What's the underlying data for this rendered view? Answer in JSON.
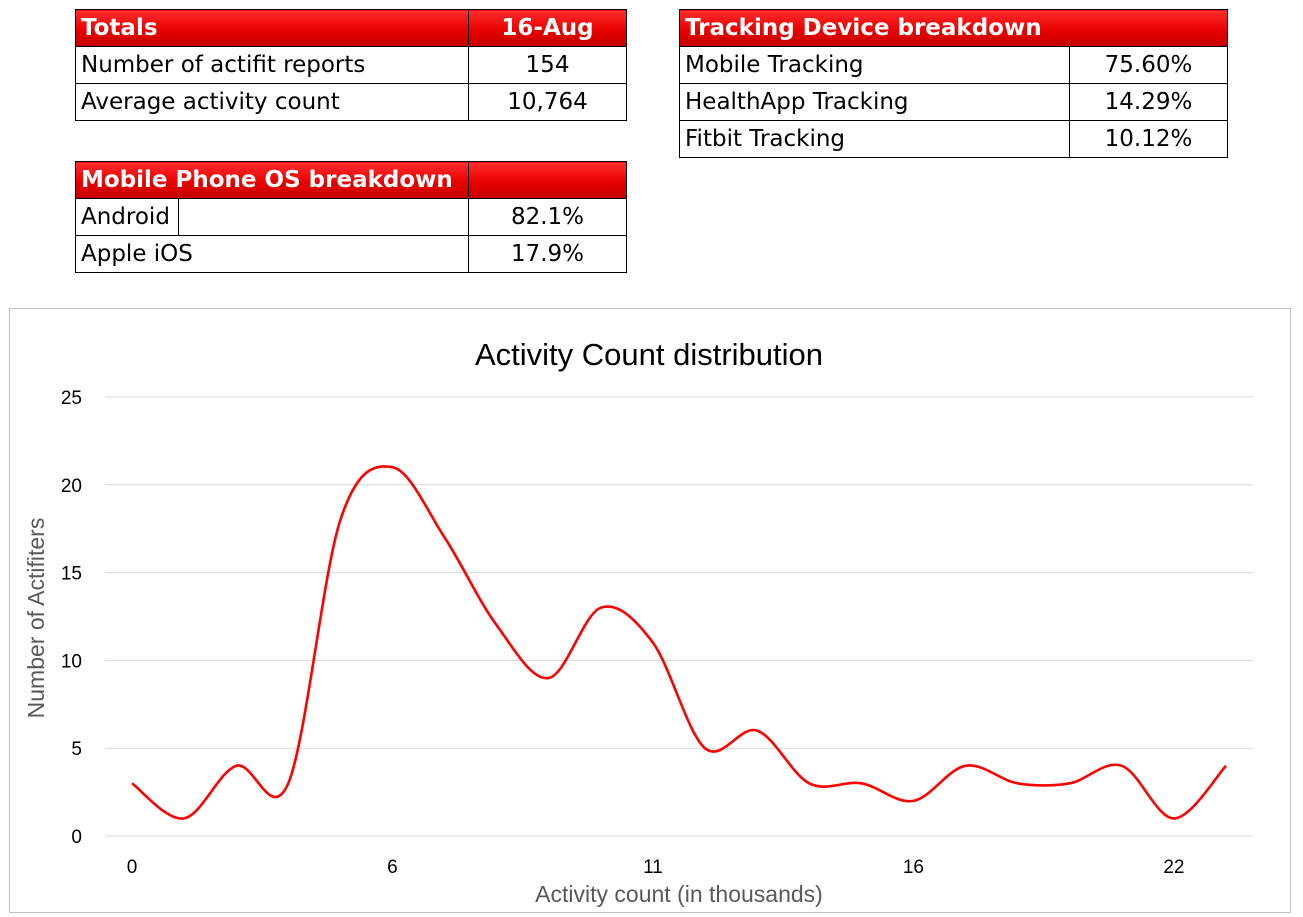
{
  "totals_table": {
    "header": {
      "label": "Totals",
      "value": "16-Aug"
    },
    "rows": [
      {
        "label": "Number of actifit reports",
        "value": "154"
      },
      {
        "label": "Average activity count",
        "value": "10,764"
      }
    ]
  },
  "device_table": {
    "header": {
      "label": "Tracking Device breakdown",
      "value": ""
    },
    "rows": [
      {
        "label": "Mobile Tracking",
        "value": "75.60%"
      },
      {
        "label": "HealthApp Tracking",
        "value": "14.29%"
      },
      {
        "label": "Fitbit Tracking",
        "value": "10.12%"
      }
    ]
  },
  "os_table": {
    "header": {
      "label": "Mobile Phone OS breakdown",
      "value": ""
    },
    "rows": [
      {
        "label": "Android",
        "value": "82.1%"
      },
      {
        "label": "Apple iOS",
        "value": "17.9%"
      }
    ]
  },
  "colors": {
    "header_red": "#e80000",
    "line": "#ff0000",
    "grid": "#d9d9d9"
  },
  "chart_data": {
    "type": "line",
    "title": "Activity Count distribution",
    "xlabel": "Activity count (in thousands)",
    "ylabel": "Number of Actifiters",
    "smoothed": true,
    "grid": true,
    "ylim": [
      0,
      25
    ],
    "yticks": [
      0,
      5,
      10,
      15,
      20,
      25
    ],
    "x_tick_labels": [
      "0",
      "6",
      "11",
      "16",
      "22"
    ],
    "x_tick_positions": [
      0,
      5,
      10,
      15,
      20
    ],
    "x": [
      0,
      1,
      2,
      3,
      4,
      5,
      6,
      7,
      8,
      9,
      10,
      11,
      12,
      13,
      14,
      15,
      16,
      17,
      18,
      19,
      20,
      21
    ],
    "series": [
      {
        "values": [
          3,
          1,
          4,
          3,
          18,
          21,
          17,
          12,
          9,
          13,
          11,
          5,
          6,
          3,
          3,
          2,
          4,
          3,
          3,
          4,
          1,
          4
        ]
      }
    ]
  }
}
